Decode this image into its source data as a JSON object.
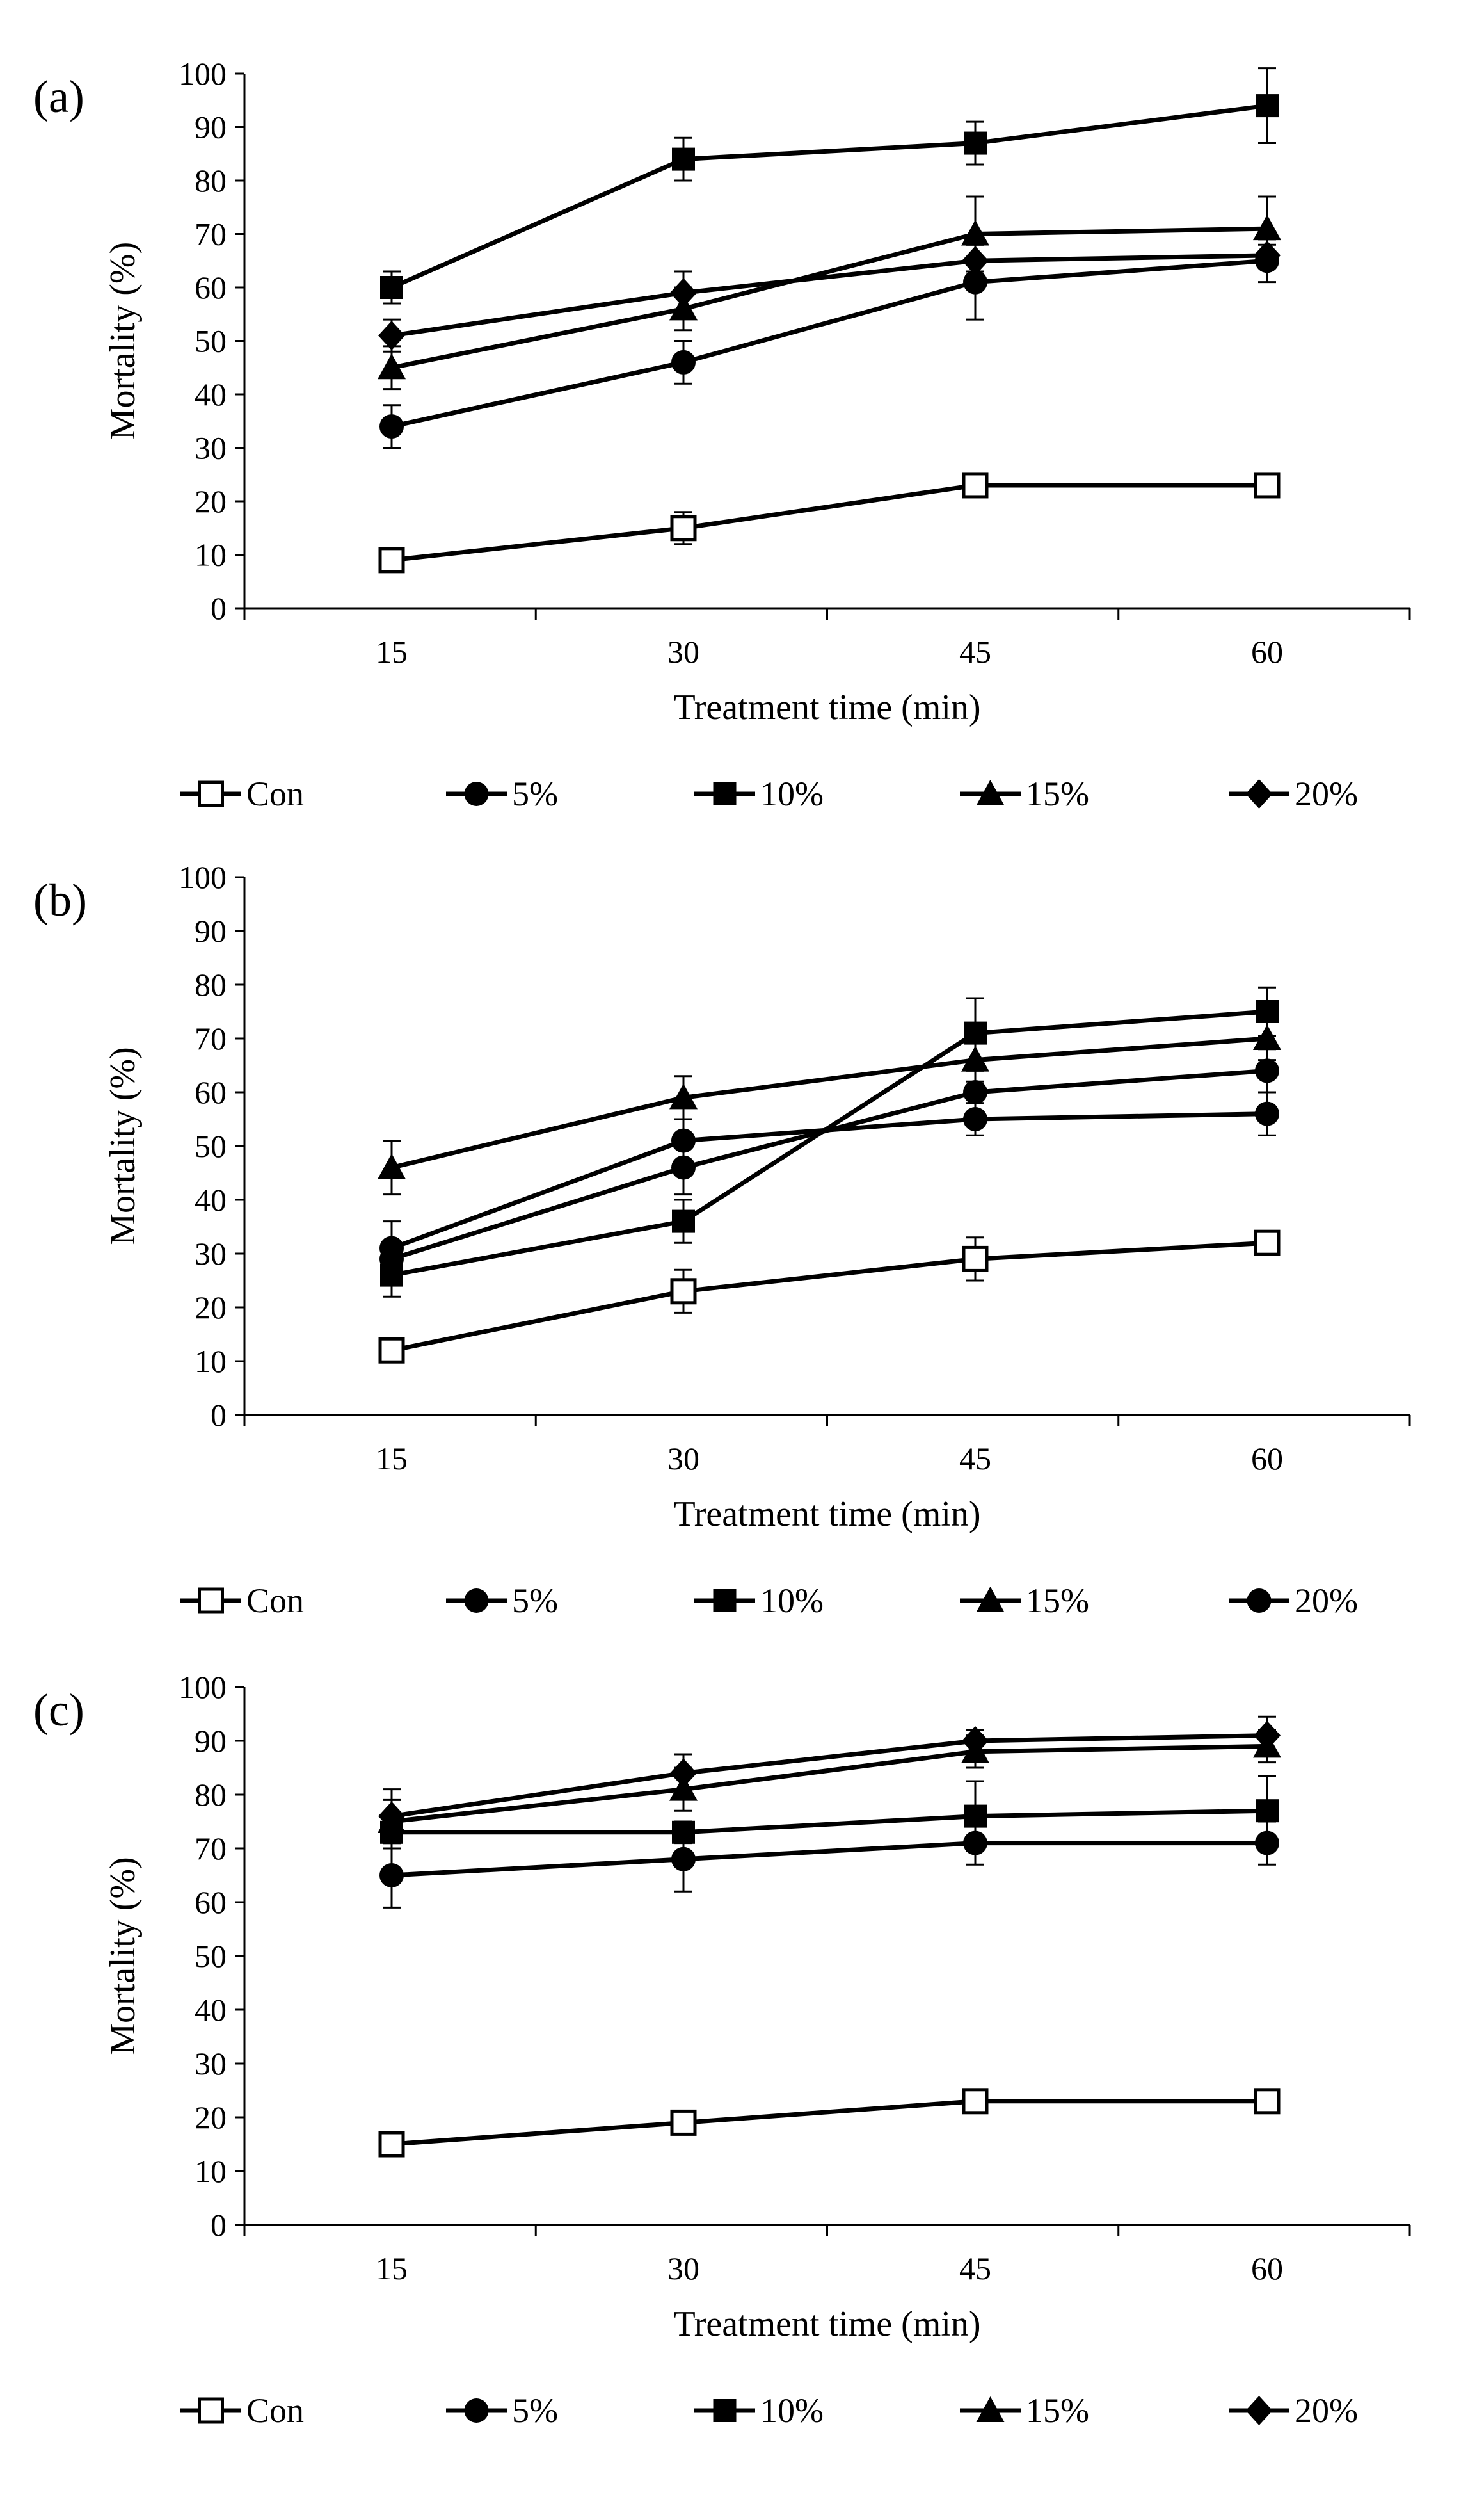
{
  "chart_data": [
    {
      "type": "line",
      "panel_label": "(a)",
      "title": "",
      "xlabel": "Treatment time (min)",
      "ylabel": "Mortality (%)",
      "x": [
        15,
        30,
        45,
        60
      ],
      "x_tick_labels": [
        "15",
        "30",
        "45",
        "60"
      ],
      "ylim": [
        0,
        100
      ],
      "y_ticks": [
        0,
        10,
        20,
        30,
        40,
        50,
        60,
        70,
        80,
        90,
        100
      ],
      "grid": false,
      "legend_position": "bottom",
      "series": [
        {
          "name": "Con",
          "marker": "square-open",
          "values": [
            9,
            15,
            23,
            23
          ],
          "errors": [
            1,
            3,
            1.5,
            1.5
          ]
        },
        {
          "name": "5%",
          "marker": "circle",
          "values": [
            34,
            46,
            61,
            65
          ],
          "errors": [
            4,
            4,
            7,
            4
          ]
        },
        {
          "name": "10%",
          "marker": "square",
          "values": [
            60,
            84,
            87,
            94
          ],
          "errors": [
            3,
            4,
            4,
            7
          ]
        },
        {
          "name": "15%",
          "marker": "triangle",
          "values": [
            45,
            56,
            70,
            71
          ],
          "errors": [
            4,
            4,
            7,
            6
          ]
        },
        {
          "name": "20%",
          "marker": "diamond",
          "values": [
            51,
            59,
            65,
            66
          ],
          "errors": [
            3,
            4,
            3,
            2
          ]
        }
      ]
    },
    {
      "type": "line",
      "panel_label": "(b)",
      "title": "",
      "xlabel": "Treatment time (min)",
      "ylabel": "Mortality (%)",
      "x": [
        15,
        30,
        45,
        60
      ],
      "x_tick_labels": [
        "15",
        "30",
        "45",
        "60"
      ],
      "ylim": [
        0,
        100
      ],
      "y_ticks": [
        0,
        10,
        20,
        30,
        40,
        50,
        60,
        70,
        80,
        90,
        100
      ],
      "grid": false,
      "legend_position": "bottom",
      "series": [
        {
          "name": "Con",
          "marker": "square-open",
          "values": [
            12,
            23,
            29,
            32
          ],
          "errors": [
            1.5,
            4,
            4,
            2
          ]
        },
        {
          "name": "5%",
          "marker": "circle",
          "values": [
            29,
            46,
            60,
            64
          ],
          "errors": [
            3,
            5,
            4,
            4
          ]
        },
        {
          "name": "10%",
          "marker": "square",
          "values": [
            26,
            36,
            71,
            75
          ],
          "errors": [
            4,
            4,
            6.5,
            4.5
          ]
        },
        {
          "name": "15%",
          "marker": "triangle",
          "values": [
            46,
            59,
            66,
            70
          ],
          "errors": [
            5,
            4,
            4,
            4
          ]
        },
        {
          "name": "20%",
          "marker": "circle",
          "values": [
            31,
            51,
            55,
            56
          ],
          "errors": [
            5,
            4,
            3,
            4
          ]
        }
      ]
    },
    {
      "type": "line",
      "panel_label": "(c)",
      "title": "",
      "xlabel": "Treatment time (min)",
      "ylabel": "Mortality (%)",
      "x": [
        15,
        30,
        45,
        60
      ],
      "x_tick_labels": [
        "15",
        "30",
        "45",
        "60"
      ],
      "ylim": [
        0,
        100
      ],
      "y_ticks": [
        0,
        10,
        20,
        30,
        40,
        50,
        60,
        70,
        80,
        90,
        100
      ],
      "grid": false,
      "legend_position": "bottom",
      "series": [
        {
          "name": "Con",
          "marker": "square-open",
          "values": [
            15,
            19,
            23,
            23
          ],
          "errors": [
            1.5,
            1.5,
            1.5,
            1.5
          ]
        },
        {
          "name": "5%",
          "marker": "circle",
          "values": [
            65,
            68,
            71,
            71
          ],
          "errors": [
            6,
            6,
            4,
            4
          ]
        },
        {
          "name": "10%",
          "marker": "square",
          "values": [
            73,
            73,
            76,
            77
          ],
          "errors": [
            3,
            2,
            6.5,
            6.5
          ]
        },
        {
          "name": "15%",
          "marker": "triangle",
          "values": [
            75,
            81,
            88,
            89
          ],
          "errors": [
            4,
            4,
            3,
            3
          ]
        },
        {
          "name": "20%",
          "marker": "diamond",
          "values": [
            76,
            84,
            90,
            91
          ],
          "errors": [
            5,
            3.5,
            2,
            3.5
          ]
        }
      ]
    }
  ]
}
